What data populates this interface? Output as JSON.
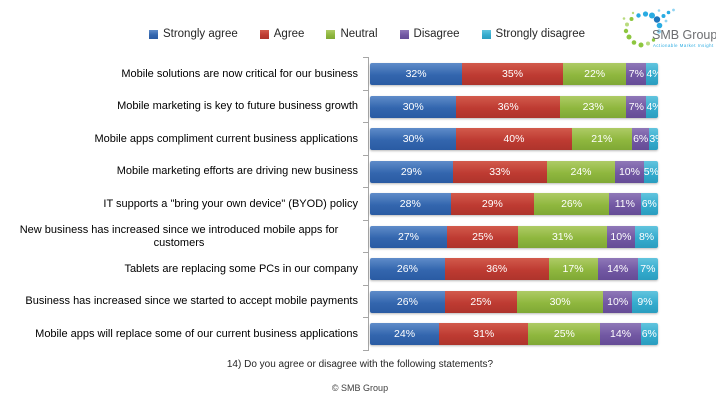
{
  "page": {
    "background": "#ffffff"
  },
  "logo": {
    "name": "SMB Group",
    "tagline": "Actionable Market Insight",
    "text_color": "#6D6E71",
    "dot_colors": [
      "#8DC63F",
      "#B9DB7E",
      "#29ABE2",
      "#1C75BC",
      "#8FD4F2"
    ]
  },
  "footer": {
    "question": "14) Do you agree or disagree with the following statements?",
    "copyright": "© SMB Group"
  },
  "chart_data": {
    "type": "bar",
    "orientation": "horizontal",
    "stacked": true,
    "unit": "percent",
    "xlim": [
      0,
      100
    ],
    "grid": false,
    "legend_position": "top",
    "axis_color": "#A6A6A6",
    "value_label_color": "#ffffff",
    "categories": [
      "Mobile solutions are now critical for our business",
      "Mobile marketing is key to future business growth",
      "Mobile apps compliment current business applications",
      "Mobile marketing efforts are driving new business",
      "IT supports a \"bring your own device\" (BYOD) policy",
      "New business has increased since we introduced mobile apps for customers",
      "Tablets are replacing some PCs in our company",
      "Business has increased since we started to accept mobile payments",
      "Mobile apps will replace some of our current business applications"
    ],
    "series": [
      {
        "name": "Strongly agree",
        "color": "#3366AE",
        "color_light": "#5F8CC9",
        "color_dark": "#2A5BA3",
        "values": [
          32,
          30,
          30,
          29,
          28,
          27,
          26,
          26,
          24
        ]
      },
      {
        "name": "Agree",
        "color": "#BE3B32",
        "color_light": "#D25A4C",
        "color_dark": "#AE342C",
        "values": [
          35,
          36,
          40,
          33,
          29,
          25,
          36,
          25,
          31
        ]
      },
      {
        "name": "Neutral",
        "color": "#8FB73E",
        "color_light": "#AECB66",
        "color_dark": "#7FA835",
        "values": [
          22,
          23,
          21,
          24,
          26,
          31,
          17,
          30,
          25
        ]
      },
      {
        "name": "Disagree",
        "color": "#7258A3",
        "color_light": "#8F78B8",
        "color_dark": "#654C96",
        "values": [
          7,
          7,
          6,
          10,
          11,
          10,
          14,
          10,
          14
        ]
      },
      {
        "name": "Strongly disagree",
        "color": "#35ACCE",
        "color_light": "#62C4DE",
        "color_dark": "#2B9DBF",
        "values": [
          4,
          4,
          3,
          5,
          6,
          8,
          7,
          9,
          6
        ]
      }
    ]
  }
}
